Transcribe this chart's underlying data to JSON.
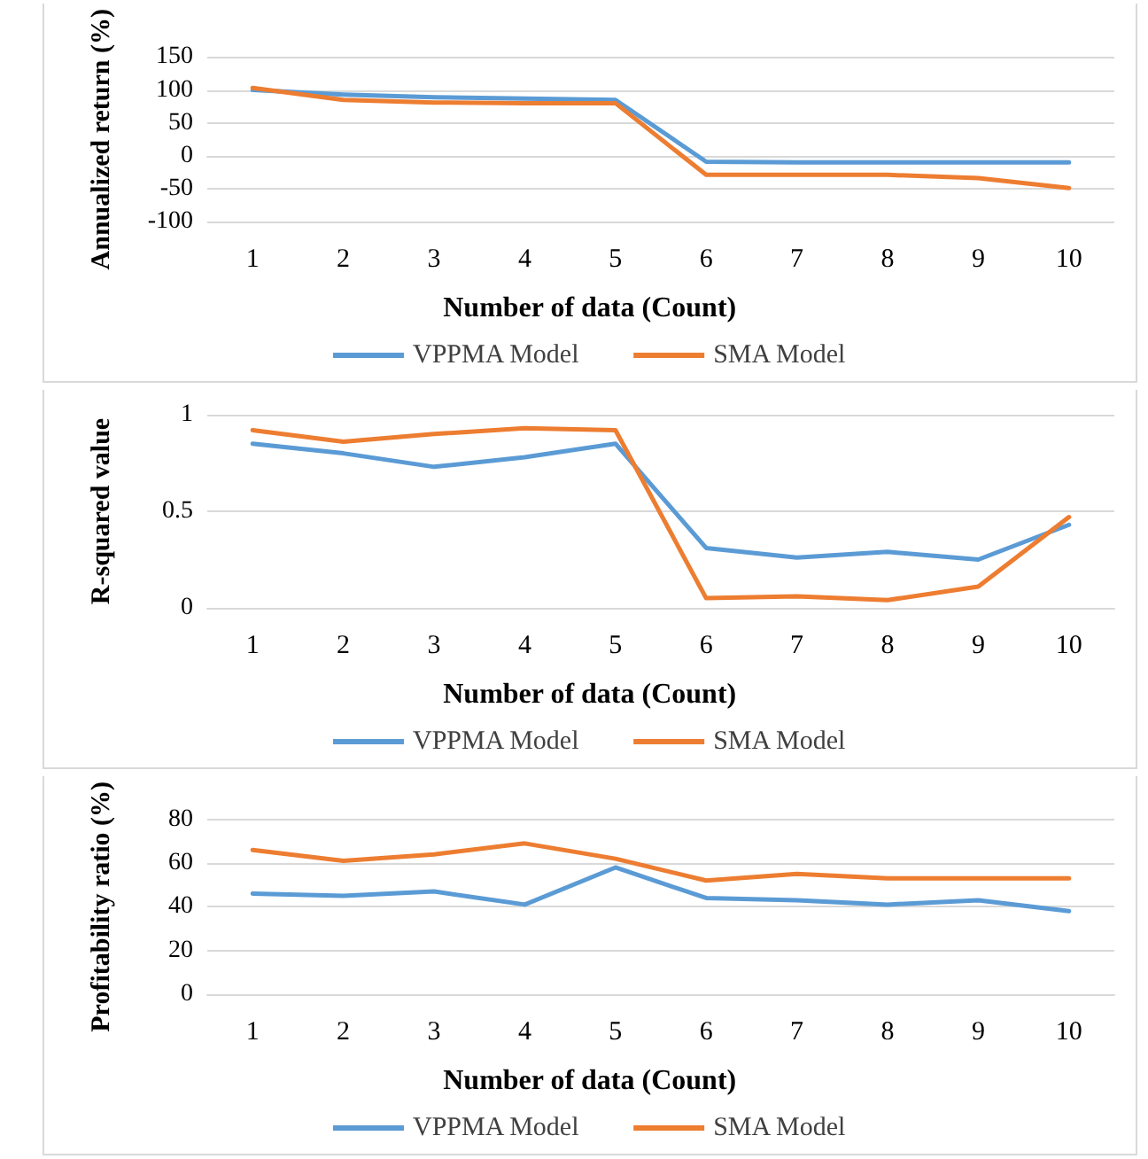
{
  "chart_data": [
    {
      "type": "line",
      "xlabel": "Number of data (Count)",
      "ylabel": "Annualized return (%)",
      "categories": [
        "1",
        "2",
        "3",
        "4",
        "5",
        "6",
        "7",
        "8",
        "9",
        "10"
      ],
      "ylim": [
        -100,
        150
      ],
      "yticks": [
        -100,
        -50,
        0,
        50,
        100,
        150
      ],
      "grid": "y",
      "legend": "bottom",
      "marker": "none",
      "line_style": "solid",
      "series": [
        {
          "name": "VPPMA Model",
          "color": "#5b9bd5",
          "values": [
            100,
            93,
            89,
            87,
            85,
            -9,
            -10,
            -10,
            -10,
            -10
          ]
        },
        {
          "name": "SMA Model",
          "color": "#ed7d31",
          "values": [
            103,
            85,
            81,
            80,
            80,
            -29,
            -29,
            -29,
            -34,
            -49
          ]
        }
      ]
    },
    {
      "type": "line",
      "xlabel": "Number of data (Count)",
      "ylabel": "R-squared value",
      "categories": [
        "1",
        "2",
        "3",
        "4",
        "5",
        "6",
        "7",
        "8",
        "9",
        "10"
      ],
      "ylim": [
        0,
        1
      ],
      "yticks": [
        0,
        0.5,
        1
      ],
      "grid": "y",
      "legend": "bottom",
      "marker": "none",
      "line_style": "solid",
      "series": [
        {
          "name": "VPPMA Model",
          "color": "#5b9bd5",
          "values": [
            0.85,
            0.8,
            0.73,
            0.78,
            0.85,
            0.31,
            0.26,
            0.29,
            0.25,
            0.43
          ]
        },
        {
          "name": "SMA Model",
          "color": "#ed7d31",
          "values": [
            0.92,
            0.86,
            0.9,
            0.93,
            0.92,
            0.05,
            0.06,
            0.04,
            0.11,
            0.47
          ]
        }
      ]
    },
    {
      "type": "line",
      "xlabel": "Number of data (Count)",
      "ylabel": "Profitability ratio (%)",
      "categories": [
        "1",
        "2",
        "3",
        "4",
        "5",
        "6",
        "7",
        "8",
        "9",
        "10"
      ],
      "ylim": [
        0,
        80
      ],
      "yticks": [
        0,
        20,
        40,
        60,
        80
      ],
      "grid": "y",
      "legend": "bottom",
      "marker": "none",
      "line_style": "solid",
      "series": [
        {
          "name": "VPPMA Model",
          "color": "#5b9bd5",
          "values": [
            46,
            45,
            47,
            41,
            58,
            44,
            43,
            41,
            43,
            38
          ]
        },
        {
          "name": "SMA Model",
          "color": "#ed7d31",
          "values": [
            66,
            61,
            64,
            69,
            62,
            52,
            55,
            53,
            53,
            53
          ]
        }
      ]
    }
  ]
}
